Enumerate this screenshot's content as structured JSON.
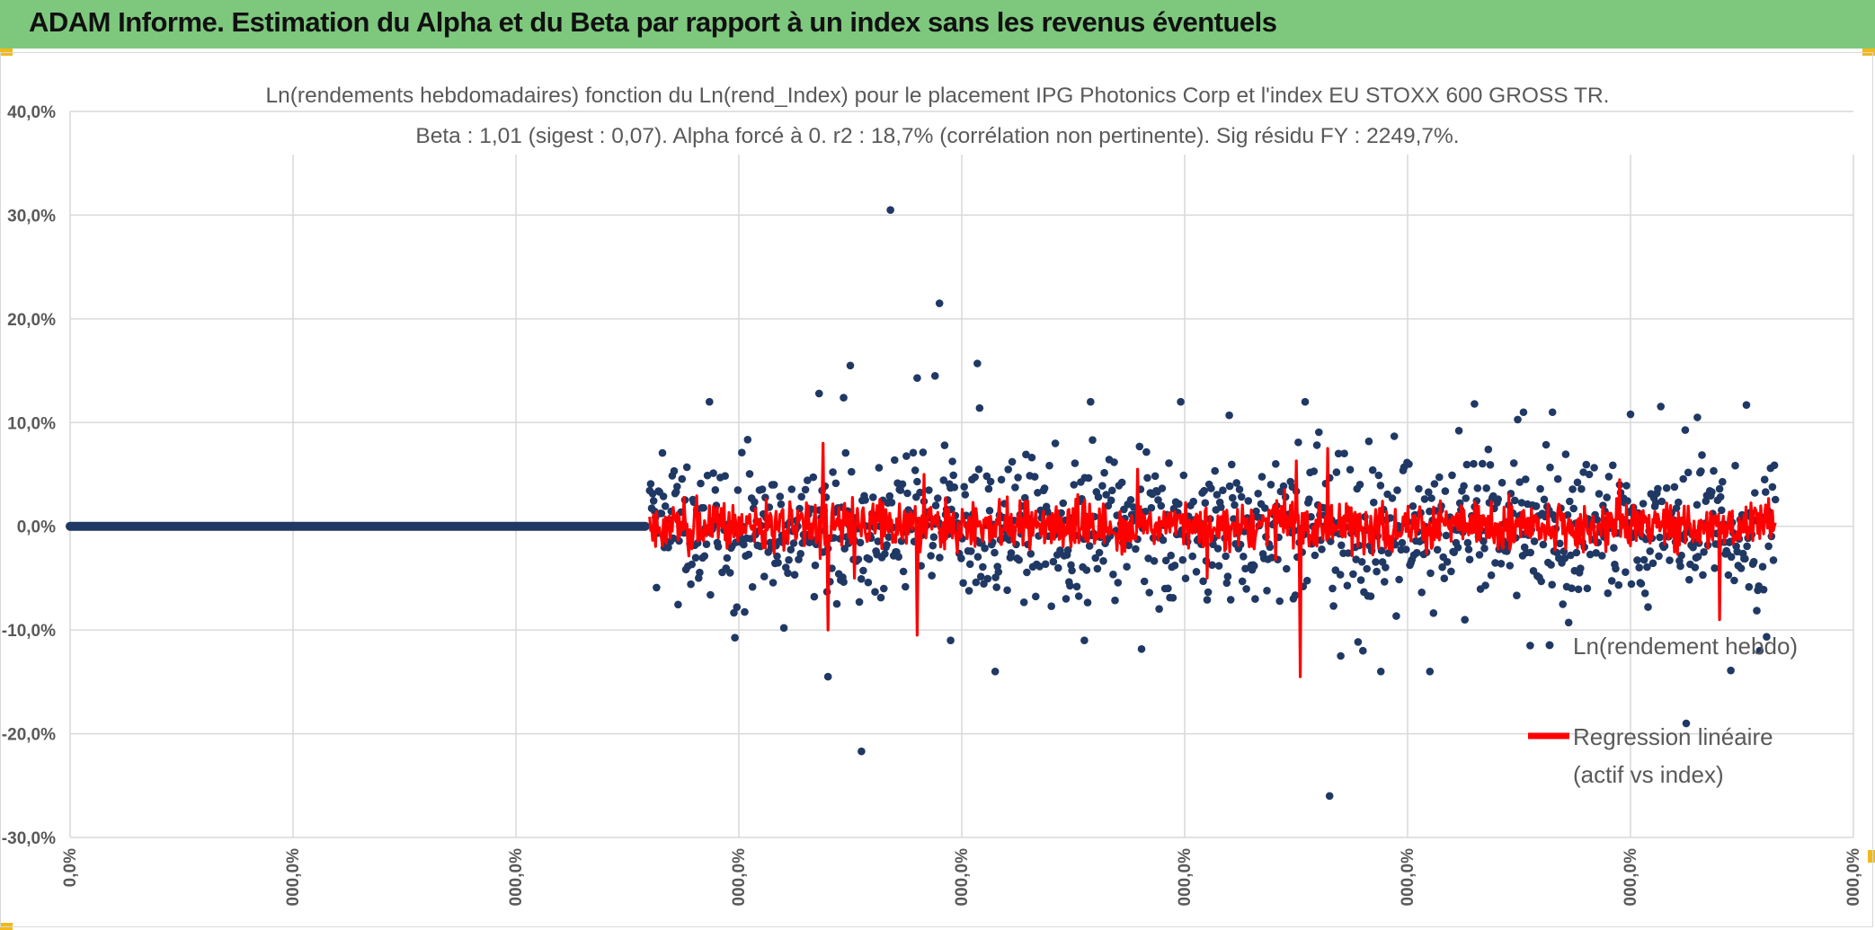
{
  "header": {
    "title": "ADAM Informe. Estimation du Alpha et du Beta par rapport à un index sans les revenus éventuels",
    "color": "#7dc87d"
  },
  "chart_data": {
    "type": "scatter",
    "title": "Ln(rendements hebdomadaires) fonction du Ln(rend_Index) pour le placement IPG Photonics Corp et l'index EU STOXX 600 GROSS TR.",
    "subtitle": "Beta : 1,01 (sigest : 0,07). Alpha forcé à 0. r2 : 18,7% (corrélation non pertinente). Sig résidu FY : 2249,7%.",
    "xlabel": "",
    "ylabel": "",
    "ylim": [
      -0.3,
      0.4
    ],
    "y_ticks": [
      {
        "value": 0.4,
        "label": "40,0%"
      },
      {
        "value": 0.3,
        "label": "30,0%"
      },
      {
        "value": 0.2,
        "label": "20,0%"
      },
      {
        "value": 0.1,
        "label": "10,0%"
      },
      {
        "value": 0.0,
        "label": "0,0%"
      },
      {
        "value": -0.1,
        "label": "-10,0%"
      },
      {
        "value": -0.2,
        "label": "-20,0%"
      },
      {
        "value": -0.3,
        "label": "-30,0%"
      }
    ],
    "x_tick_labels": [
      "0,0%",
      "000,0%",
      "000,0%",
      "000,0%",
      "000,0%",
      "000,0%",
      "000,0%",
      "000,0%",
      "000,0%"
    ],
    "grid": true,
    "series": [
      {
        "name": "Ln(rendement hebdo)",
        "kind": "scatter",
        "color": "#203864",
        "flat_segment": {
          "x_start": 0.0,
          "x_end": 2.58,
          "y": 0.0
        },
        "outliers": [
          {
            "x": 3.68,
            "y": 0.305
          },
          {
            "x": 3.9,
            "y": 0.215
          },
          {
            "x": 3.5,
            "y": 0.155
          },
          {
            "x": 4.07,
            "y": 0.157
          },
          {
            "x": 3.88,
            "y": 0.145
          },
          {
            "x": 3.8,
            "y": 0.143
          },
          {
            "x": 3.36,
            "y": 0.128
          },
          {
            "x": 3.47,
            "y": 0.124
          },
          {
            "x": 4.08,
            "y": 0.114
          },
          {
            "x": 5.2,
            "y": 0.107
          },
          {
            "x": 6.3,
            "y": 0.118
          },
          {
            "x": 6.65,
            "y": 0.11
          },
          {
            "x": 6.52,
            "y": 0.11
          },
          {
            "x": 7.3,
            "y": 0.105
          },
          {
            "x": 7.0,
            "y": 0.108
          },
          {
            "x": 7.52,
            "y": 0.117
          },
          {
            "x": 3.4,
            "y": -0.145
          },
          {
            "x": 3.55,
            "y": -0.217
          },
          {
            "x": 4.15,
            "y": -0.14
          },
          {
            "x": 5.65,
            "y": -0.26
          },
          {
            "x": 5.88,
            "y": -0.14
          },
          {
            "x": 5.7,
            "y": -0.125
          },
          {
            "x": 6.1,
            "y": -0.14
          },
          {
            "x": 7.25,
            "y": -0.19
          },
          {
            "x": 7.45,
            "y": -0.139
          },
          {
            "x": 6.55,
            "y": -0.115
          },
          {
            "x": 4.55,
            "y": -0.11
          },
          {
            "x": 3.95,
            "y": -0.11
          }
        ],
        "cloud": {
          "x_start": 2.6,
          "x_end": 7.65,
          "spread": 0.045
        }
      },
      {
        "name": "Regression linéaire (actif vs index)",
        "kind": "line",
        "color": "#ff0000",
        "beta": 1.01,
        "spikes": [
          {
            "x": 3.38,
            "y": 0.08
          },
          {
            "x": 3.4,
            "y": -0.1
          },
          {
            "x": 3.52,
            "y": -0.05
          },
          {
            "x": 3.8,
            "y": -0.105
          },
          {
            "x": 4.79,
            "y": 0.055
          },
          {
            "x": 5.52,
            "y": -0.145
          },
          {
            "x": 5.5,
            "y": 0.063
          },
          {
            "x": 5.64,
            "y": 0.075
          },
          {
            "x": 6.95,
            "y": 0.045
          },
          {
            "x": 7.4,
            "y": -0.09
          },
          {
            "x": 3.83,
            "y": 0.05
          },
          {
            "x": 5.1,
            "y": -0.05
          }
        ]
      }
    ],
    "legend": [
      {
        "label": "Ln(rendement hebdo)",
        "symbol": "marker"
      },
      {
        "label": "Regression linéaire",
        "label2": "(actif vs index)",
        "symbol": "line"
      }
    ],
    "legend_position": "right"
  }
}
